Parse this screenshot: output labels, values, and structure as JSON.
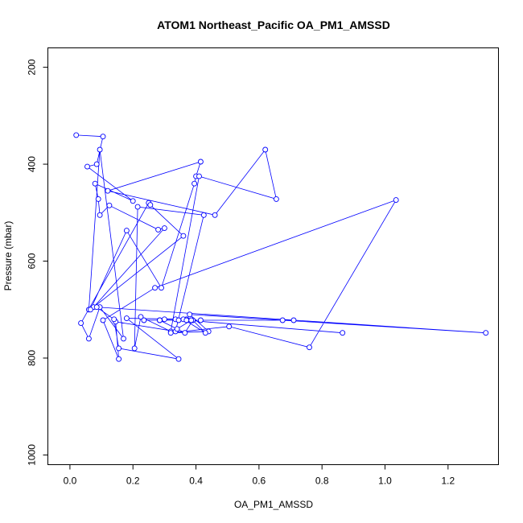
{
  "chart_data": {
    "type": "line",
    "title": "ATOM1 Northeast_Pacific OA_PM1_AMSSD",
    "xlabel": "OA_PM1_AMSSD",
    "ylabel": "Pressure (mbar)",
    "xlim": [
      -0.07,
      1.36
    ],
    "ylim": [
      1020,
      160
    ],
    "y_reversed": true,
    "xticks": [
      0.0,
      0.2,
      0.4,
      0.6,
      0.8,
      1.0,
      1.2
    ],
    "xtick_labels": [
      "0.0",
      "0.2",
      "0.4",
      "0.6",
      "0.8",
      "1.0",
      "1.2"
    ],
    "yticks": [
      200,
      400,
      600,
      800,
      1000
    ],
    "ytick_labels": [
      "200",
      "400",
      "600",
      "800",
      "1000"
    ],
    "series_color": "#0000ff",
    "marker": "open-circle",
    "points_clipped_above_top": true,
    "x": [
      0.02,
      0.105,
      0.085,
      0.055,
      0.2,
      0.08,
      0.09,
      0.095,
      0.125,
      0.28,
      0.3,
      0.075,
      0.06,
      0.095,
      0.17,
      0.095,
      0.06,
      0.035,
      0.25,
      0.255,
      0.36,
      0.065,
      0.18,
      0.29,
      0.395,
      0.4,
      0.415,
      0.12,
      0.46,
      0.62,
      0.655,
      0.41,
      0.32,
      0.225,
      0.205,
      0.215,
      0.425,
      0.335,
      0.145,
      0.155,
      0.105,
      0.27,
      1.035,
      0.76,
      0.505,
      0.32,
      0.44,
      0.38,
      1.32,
      0.085,
      0.14,
      0.155,
      0.345,
      0.18,
      0.37,
      0.3,
      0.285,
      0.365,
      0.39,
      0.43,
      0.36,
      0.335,
      0.865,
      0.37,
      0.285,
      0.34,
      0.385,
      0.675,
      0.415,
      0.71,
      0.235,
      0.345
    ],
    "y": [
      340,
      343,
      400,
      405,
      476,
      440,
      472,
      505,
      485,
      535,
      532,
      695,
      700,
      370,
      760,
      695,
      760,
      728,
      480,
      484,
      548,
      700,
      537,
      655,
      440,
      425,
      395,
      455,
      505,
      370,
      472,
      425,
      745,
      715,
      780,
      488,
      505,
      745,
      725,
      802,
      722,
      655,
      474,
      778,
      735,
      748,
      745,
      710,
      748,
      695,
      720,
      780,
      802,
      718,
      720,
      720,
      722,
      748,
      722,
      748,
      720,
      720,
      748,
      722,
      722,
      740,
      722,
      722,
      722,
      722,
      722,
      722
    ]
  }
}
